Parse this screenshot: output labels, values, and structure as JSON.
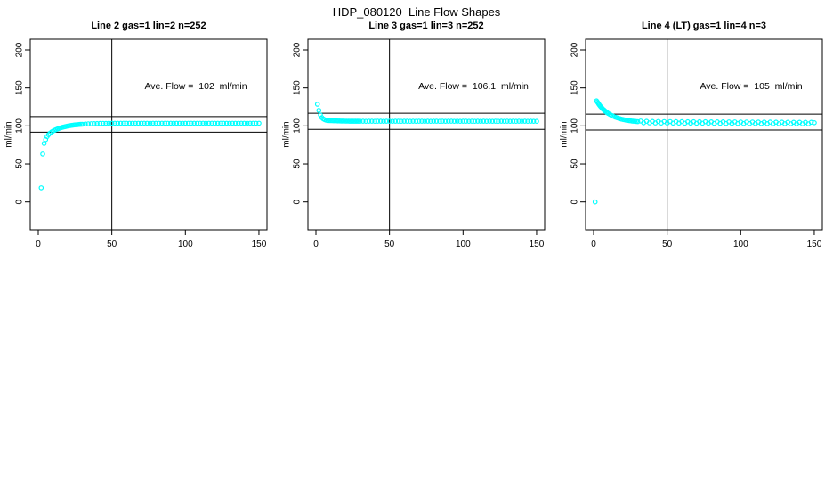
{
  "figure": {
    "title": "HDP_080120  Line Flow Shapes"
  },
  "colors": {
    "marker": "#00ffff",
    "axis": "#000000",
    "background": "#ffffff"
  },
  "chart_data": [
    {
      "type": "scatter",
      "title": "Line 2 gas=1 lin=2 n=252",
      "annotation": "Ave. Flow =  102  ml/min",
      "ave_flow_ml_min": 102,
      "n": 252,
      "ylabel": "ml/min",
      "xticks": [
        0,
        50,
        100,
        150
      ],
      "yticks": [
        0,
        50,
        100,
        150,
        200
      ],
      "xlim": [
        -5,
        155
      ],
      "ylim": [
        -36,
        214
      ],
      "grid": false,
      "ref_hlines": [
        91.8,
        112.2
      ],
      "ref_vline": 50,
      "points": [
        [
          2,
          18.5
        ],
        [
          3,
          63
        ],
        [
          4,
          77
        ],
        [
          5,
          82
        ],
        [
          6,
          86
        ],
        [
          7,
          88.5
        ],
        [
          8,
          90.5
        ],
        [
          9,
          92
        ],
        [
          10,
          93.2
        ],
        [
          11,
          94.2
        ],
        [
          12,
          95.1
        ],
        [
          13,
          95.9
        ],
        [
          14,
          96.6
        ],
        [
          15,
          97.3
        ],
        [
          16,
          97.9
        ],
        [
          17,
          98.4
        ],
        [
          18,
          98.9
        ],
        [
          19,
          99.4
        ],
        [
          20,
          99.8
        ],
        [
          21,
          100.2
        ],
        [
          22,
          100.5
        ],
        [
          23,
          100.8
        ],
        [
          24,
          101.1
        ],
        [
          25,
          101.3
        ],
        [
          26,
          101.5
        ],
        [
          27,
          101.7
        ],
        [
          28,
          101.9
        ],
        [
          29,
          102.1
        ],
        [
          30,
          102.2
        ],
        [
          32,
          102.5
        ],
        [
          34,
          102.7
        ],
        [
          36,
          102.9
        ],
        [
          38,
          103
        ],
        [
          40,
          103.1
        ],
        [
          42,
          103.2
        ],
        [
          44,
          103.3
        ],
        [
          46,
          103.3
        ],
        [
          48,
          103.4
        ],
        [
          50,
          103.4
        ],
        [
          52,
          103.5
        ],
        [
          54,
          103.4
        ],
        [
          56,
          103.5
        ],
        [
          58,
          103.4
        ],
        [
          60,
          103.5
        ],
        [
          62,
          103.4
        ],
        [
          64,
          103.5
        ],
        [
          66,
          103.4
        ],
        [
          68,
          103.5
        ],
        [
          70,
          103.4
        ],
        [
          72,
          103.5
        ],
        [
          74,
          103.4
        ],
        [
          76,
          103.5
        ],
        [
          78,
          103.4
        ],
        [
          80,
          103.5
        ],
        [
          82,
          103.4
        ],
        [
          84,
          103.5
        ],
        [
          86,
          103.4
        ],
        [
          88,
          103.5
        ],
        [
          90,
          103.4
        ],
        [
          92,
          103.5
        ],
        [
          94,
          103.4
        ],
        [
          96,
          103.5
        ],
        [
          98,
          103.4
        ],
        [
          100,
          103.5
        ],
        [
          102,
          103.4
        ],
        [
          104,
          103.5
        ],
        [
          106,
          103.4
        ],
        [
          108,
          103.5
        ],
        [
          110,
          103.4
        ],
        [
          112,
          103.5
        ],
        [
          114,
          103.4
        ],
        [
          116,
          103.5
        ],
        [
          118,
          103.4
        ],
        [
          120,
          103.5
        ],
        [
          122,
          103.4
        ],
        [
          124,
          103.5
        ],
        [
          126,
          103.4
        ],
        [
          128,
          103.5
        ],
        [
          130,
          103.4
        ],
        [
          132,
          103.5
        ],
        [
          134,
          103.4
        ],
        [
          136,
          103.5
        ],
        [
          138,
          103.4
        ],
        [
          140,
          103.5
        ],
        [
          142,
          103.4
        ],
        [
          144,
          103.5
        ],
        [
          146,
          103.4
        ],
        [
          148,
          103.5
        ],
        [
          150,
          103.4
        ]
      ]
    },
    {
      "type": "scatter",
      "title": "Line 3 gas=1 lin=3 n=252",
      "annotation": "Ave. Flow =  106.1  ml/min",
      "ave_flow_ml_min": 106.1,
      "n": 252,
      "ylabel": "ml/min",
      "xticks": [
        0,
        50,
        100,
        150
      ],
      "yticks": [
        0,
        50,
        100,
        150,
        200
      ],
      "xlim": [
        -5,
        155
      ],
      "ylim": [
        -36,
        214
      ],
      "grid": false,
      "ref_hlines": [
        95.5,
        116.7
      ],
      "ref_vline": 50,
      "points": [
        [
          1,
          128.5
        ],
        [
          2,
          120.5
        ],
        [
          3,
          114.5
        ],
        [
          4,
          111
        ],
        [
          5,
          109.2
        ],
        [
          6,
          108.1
        ],
        [
          7,
          107.4
        ],
        [
          8,
          107
        ],
        [
          9,
          107
        ],
        [
          10,
          106.9
        ],
        [
          11,
          106.8
        ],
        [
          12,
          106.7
        ],
        [
          13,
          106.7
        ],
        [
          14,
          106.6
        ],
        [
          15,
          106.5
        ],
        [
          16,
          106.5
        ],
        [
          17,
          106.4
        ],
        [
          18,
          106.4
        ],
        [
          19,
          106.4
        ],
        [
          20,
          106.3
        ],
        [
          21,
          106.3
        ],
        [
          22,
          106.3
        ],
        [
          23,
          106.2
        ],
        [
          24,
          106.2
        ],
        [
          25,
          106.2
        ],
        [
          26,
          106.2
        ],
        [
          27,
          106.1
        ],
        [
          28,
          106.1
        ],
        [
          29,
          106.1
        ],
        [
          30,
          106.1
        ],
        [
          32,
          106.2
        ],
        [
          34,
          106
        ],
        [
          36,
          106.1
        ],
        [
          38,
          106.2
        ],
        [
          40,
          106
        ],
        [
          42,
          106.1
        ],
        [
          44,
          106.2
        ],
        [
          46,
          106
        ],
        [
          48,
          106.1
        ],
        [
          50,
          106.2
        ],
        [
          52,
          106
        ],
        [
          54,
          106.1
        ],
        [
          56,
          106.2
        ],
        [
          58,
          106
        ],
        [
          60,
          106.1
        ],
        [
          62,
          106.2
        ],
        [
          64,
          106
        ],
        [
          66,
          106.1
        ],
        [
          68,
          106
        ],
        [
          70,
          106.1
        ],
        [
          72,
          106.2
        ],
        [
          74,
          106
        ],
        [
          76,
          106.1
        ],
        [
          78,
          106
        ],
        [
          80,
          106.1
        ],
        [
          82,
          106.2
        ],
        [
          84,
          106
        ],
        [
          86,
          106.1
        ],
        [
          88,
          106
        ],
        [
          90,
          106.1
        ],
        [
          92,
          106.2
        ],
        [
          94,
          106
        ],
        [
          96,
          106.1
        ],
        [
          98,
          106
        ],
        [
          100,
          106.1
        ],
        [
          102,
          106.2
        ],
        [
          104,
          106
        ],
        [
          106,
          106.1
        ],
        [
          108,
          106
        ],
        [
          110,
          106.1
        ],
        [
          112,
          106
        ],
        [
          114,
          106.1
        ],
        [
          116,
          106
        ],
        [
          118,
          106.1
        ],
        [
          120,
          106
        ],
        [
          122,
          106.1
        ],
        [
          124,
          106
        ],
        [
          126,
          106.1
        ],
        [
          128,
          106
        ],
        [
          130,
          106.1
        ],
        [
          132,
          106
        ],
        [
          134,
          106.1
        ],
        [
          136,
          106
        ],
        [
          138,
          106.1
        ],
        [
          140,
          106
        ],
        [
          142,
          106.1
        ],
        [
          144,
          106
        ],
        [
          146,
          106.1
        ],
        [
          148,
          106
        ],
        [
          150,
          106
        ]
      ]
    },
    {
      "type": "scatter",
      "title": "Line 4 (LT) gas=1 lin=4 n=3",
      "annotation": "Ave. Flow =  105  ml/min",
      "ave_flow_ml_min": 105,
      "n": 3,
      "ylabel": "ml/min",
      "xticks": [
        0,
        50,
        100,
        150
      ],
      "yticks": [
        0,
        50,
        100,
        150,
        200
      ],
      "xlim": [
        -5,
        155
      ],
      "ylim": [
        -36,
        214
      ],
      "grid": false,
      "ref_hlines": [
        94.5,
        115.5
      ],
      "ref_vline": 50,
      "points": [
        [
          1,
          0
        ],
        [
          2,
          133
        ],
        [
          2.5,
          131.6
        ],
        [
          3,
          130.2
        ],
        [
          3.5,
          128.6
        ],
        [
          4,
          127.4
        ],
        [
          4.5,
          126.1
        ],
        [
          5,
          125
        ],
        [
          5.5,
          123.9
        ],
        [
          6,
          122.9
        ],
        [
          6.5,
          121.9
        ],
        [
          7,
          121
        ],
        [
          7.5,
          120.1
        ],
        [
          8,
          119.3
        ],
        [
          8.5,
          118.5
        ],
        [
          9,
          117.8
        ],
        [
          9.5,
          117.1
        ],
        [
          10,
          116.4
        ],
        [
          11,
          115.2
        ],
        [
          12,
          114.1
        ],
        [
          13,
          113.1
        ],
        [
          14,
          112.2
        ],
        [
          15,
          111.4
        ],
        [
          16,
          110.7
        ],
        [
          17,
          110
        ],
        [
          18,
          109.4
        ],
        [
          19,
          108.9
        ],
        [
          20,
          108.4
        ],
        [
          21,
          108
        ],
        [
          22,
          107.6
        ],
        [
          23,
          107.3
        ],
        [
          24,
          107
        ],
        [
          25,
          106.7
        ],
        [
          26,
          106.4
        ],
        [
          27,
          106.2
        ],
        [
          28,
          106
        ],
        [
          29,
          105.8
        ],
        [
          30,
          105.6
        ],
        [
          32,
          106.4
        ],
        [
          34,
          104.1
        ],
        [
          36,
          106
        ],
        [
          38,
          103.9
        ],
        [
          40,
          105.9
        ],
        [
          42,
          103.8
        ],
        [
          44,
          105.8
        ],
        [
          46,
          103.7
        ],
        [
          48,
          105.7
        ],
        [
          50,
          103.7
        ],
        [
          52,
          105.7
        ],
        [
          54,
          103.6
        ],
        [
          56,
          105.6
        ],
        [
          58,
          103.6
        ],
        [
          60,
          105.6
        ],
        [
          62,
          103.5
        ],
        [
          64,
          105.5
        ],
        [
          66,
          103.5
        ],
        [
          68,
          105.5
        ],
        [
          70,
          103.4
        ],
        [
          72,
          105.4
        ],
        [
          74,
          103.4
        ],
        [
          76,
          105.4
        ],
        [
          78,
          103.4
        ],
        [
          80,
          105.3
        ],
        [
          82,
          103.3
        ],
        [
          84,
          105.3
        ],
        [
          86,
          103.3
        ],
        [
          88,
          105.3
        ],
        [
          90,
          103.2
        ],
        [
          92,
          105.2
        ],
        [
          94,
          103.2
        ],
        [
          96,
          105.2
        ],
        [
          98,
          103.2
        ],
        [
          100,
          105.1
        ],
        [
          102,
          103.1
        ],
        [
          104,
          105.1
        ],
        [
          106,
          103.1
        ],
        [
          108,
          105.1
        ],
        [
          110,
          103
        ],
        [
          112,
          105
        ],
        [
          114,
          103
        ],
        [
          116,
          105
        ],
        [
          118,
          103
        ],
        [
          120,
          105
        ],
        [
          122,
          102.9
        ],
        [
          124,
          104.9
        ],
        [
          126,
          102.9
        ],
        [
          128,
          104.9
        ],
        [
          130,
          102.9
        ],
        [
          132,
          104.8
        ],
        [
          134,
          102.8
        ],
        [
          136,
          104.8
        ],
        [
          138,
          102.8
        ],
        [
          140,
          104.8
        ],
        [
          142,
          102.8
        ],
        [
          144,
          104.7
        ],
        [
          146,
          102.7
        ],
        [
          148,
          104.7
        ],
        [
          150,
          104.2
        ]
      ]
    }
  ]
}
